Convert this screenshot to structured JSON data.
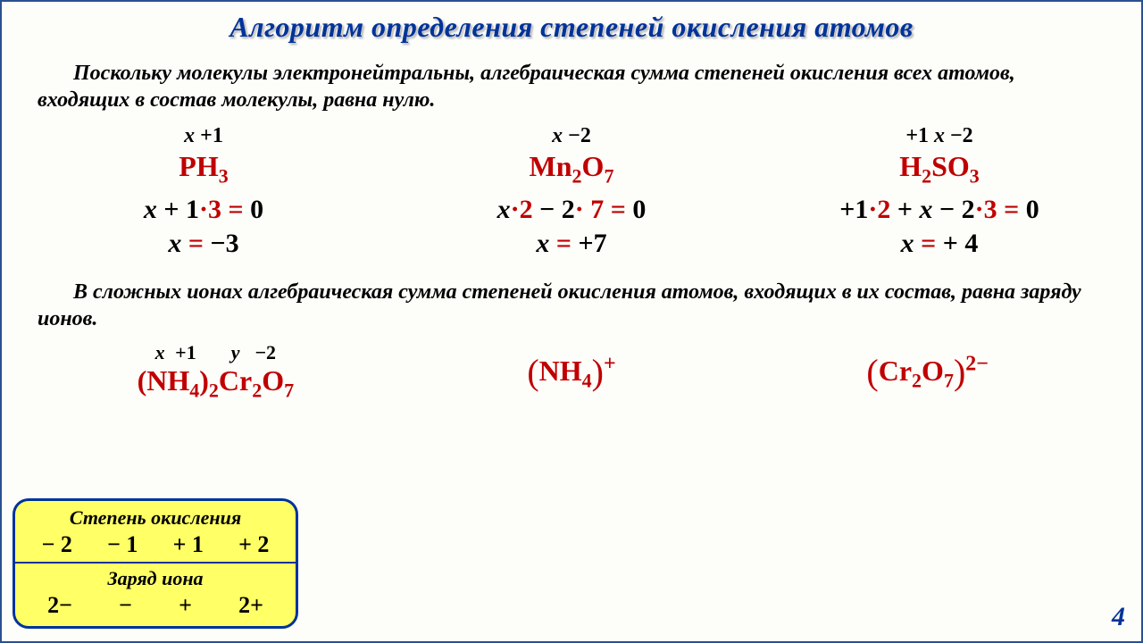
{
  "title": "Алгоритм определения степеней окисления атомов",
  "para1": "Поскольку молекулы электронейтральны, алгебраическая сумма степеней окисления всех атомов, входящих в состав молекулы, равна нулю.",
  "para2": "В сложных ионах алгебраическая сумма степеней окисления атомов, входящих в их состав, равна заряду ионов.",
  "examples": [
    {
      "ox_html": "<span class='x'>x</span>&nbsp;<span class='v'>+1</span>",
      "formula_html": "PH<span class='sub'>3</span>",
      "eq1_html": "<span class='x'>x</span> + 1<span class='dot'>·</span><span class='red'>3</span> <span class='red'>=</span> 0",
      "eq2_html": "<span class='x'>x</span> <span class='red'>=</span> −3"
    },
    {
      "ox_html": "<span class='x'>x</span>&nbsp;<span class='v'>−2</span>",
      "formula_html": "Mn<span class='sub'>2</span>O<span class='sub'>7</span>",
      "eq1_html": "<span class='x'>x</span><span class='dot'>·</span><span class='red'>2</span> − 2<span class='dot'>·</span> <span class='red'>7</span> <span class='red'>=</span> 0",
      "eq2_html": "<span class='x'>x</span> <span class='red'>=</span> +7"
    },
    {
      "ox_html": "<span class='v'>+1</span>&nbsp;<span class='x'>x</span>&nbsp;<span class='v'>−2</span>",
      "formula_html": "H<span class='sub'>2</span>SO<span class='sub'>3</span>",
      "eq1_html": "+1<span class='dot'>·</span><span class='red'>2</span> + <span class='x'>x</span> − 2<span class='dot'>·</span><span class='red'>3</span> <span class='red'>=</span> 0",
      "eq2_html": "<span class='x'>x</span> <span class='red'>=</span> + 4"
    }
  ],
  "ions": [
    {
      "ox_html": "<span class='xi'>x</span>&nbsp;+1&nbsp;&nbsp;&nbsp;&nbsp;&nbsp;&nbsp;<span class='xi'>y</span>&nbsp;&nbsp;−2",
      "formula_html": "(NH<span class='sub'>4</span>)<span class='sub'>2</span>Cr<span class='sub'>2</span>O<span class='sub'>7</span>"
    },
    {
      "ox_html": "",
      "formula_html": "<span class='bigparen'>(</span>NH<span class='sub'>4</span><span class='bigparen'>)</span><span class='sup'>+</span>"
    },
    {
      "ox_html": "",
      "formula_html": "<span class='bigparen'>(</span>Cr<span class='sub'>2</span>O<span class='sub'>7</span><span class='bigparen'>)</span><span class='sup'>2−</span>"
    }
  ],
  "box": {
    "title1": "Степень окисления",
    "row1": [
      "− 2",
      "− 1",
      "+ 1",
      "+ 2"
    ],
    "title2": "Заряд иона",
    "row2": [
      "2−",
      "−",
      "+",
      "2+"
    ]
  },
  "page_num": "4",
  "colors": {
    "title": "#003399",
    "red": "#c00000",
    "box_bg": "#ffff66",
    "box_border": "#003399",
    "page_border": "#2a5090"
  }
}
